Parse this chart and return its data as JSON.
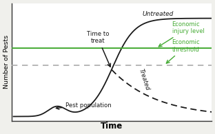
{
  "bg_color": "#f0f0ec",
  "plot_bg_color": "#ffffff",
  "econ_injury_level": 0.68,
  "econ_threshold": 0.52,
  "econ_injury_color": "#44aa33",
  "econ_threshold_color": "#aaaaaa",
  "econ_threshold_dash_color": "#aaaaaa",
  "untreated_label": "Untreated",
  "treated_label": "Treated",
  "pest_pop_label": "Pest population",
  "time_to_treat_label": "Time to\ntreat",
  "econ_injury_label": "Economic\ninjury level",
  "econ_threshold_label": "Economic\nthreshold",
  "xlabel": "Time",
  "ylabel": "Number of Pests",
  "line_color": "#1a1a1a",
  "arrow_color": "#1a1a1a",
  "green_arrow_color": "#44aa33",
  "figsize": [
    3.12,
    1.95
  ],
  "dpi": 100
}
